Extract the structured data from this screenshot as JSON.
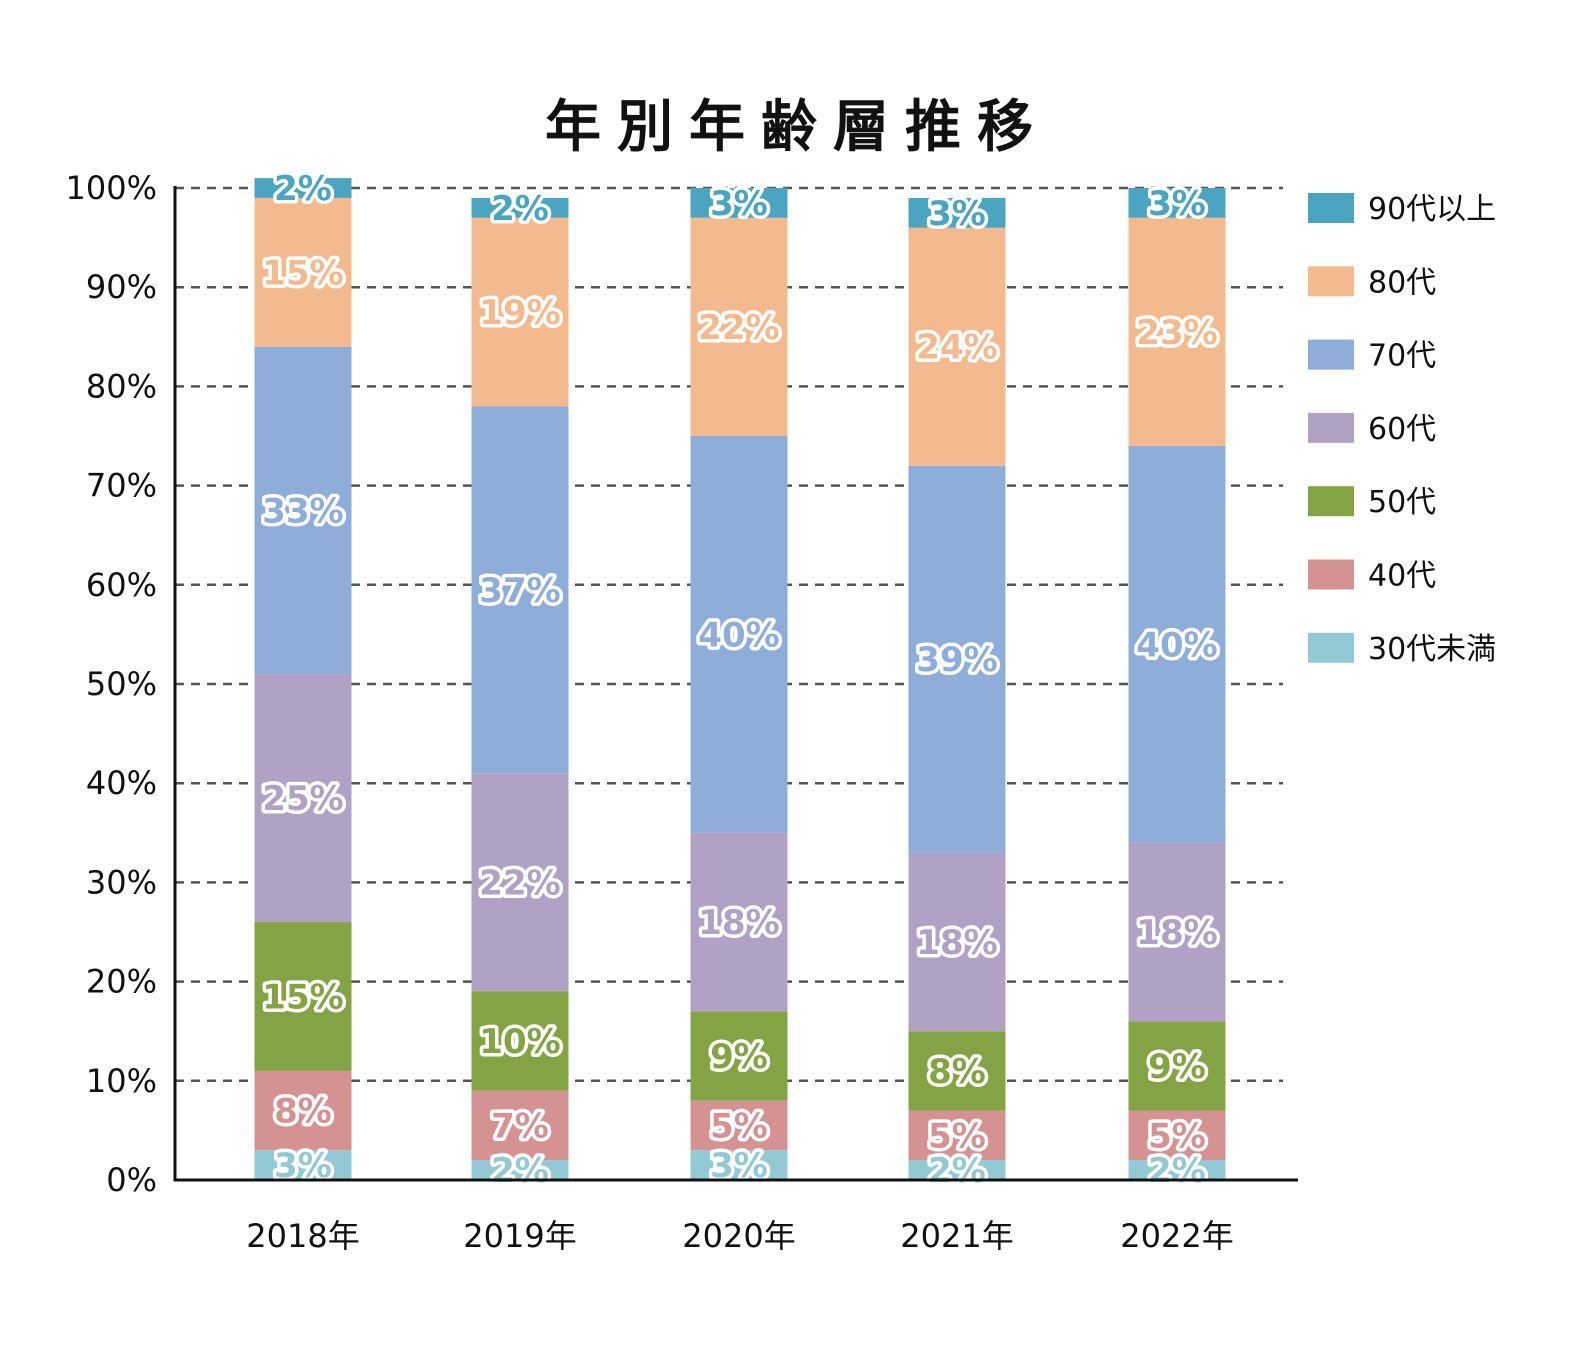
{
  "chart_data": {
    "type": "bar",
    "stacked": true,
    "title": "年別年齢層推移",
    "categories": [
      "2018年",
      "2019年",
      "2020年",
      "2021年",
      "2022年"
    ],
    "ylim": [
      0,
      100
    ],
    "yticks": [
      "0%",
      "10%",
      "20%",
      "30%",
      "40%",
      "50%",
      "60%",
      "70%",
      "80%",
      "90%",
      "100%"
    ],
    "grid": true,
    "legend_position": "right",
    "series": [
      {
        "name": "30代未満",
        "color": "#93c9d5",
        "values": [
          3,
          2,
          3,
          2,
          2
        ],
        "labels": [
          "3%",
          "2%",
          "3%",
          "2%",
          "2%"
        ]
      },
      {
        "name": "40代",
        "color": "#d49392",
        "values": [
          8,
          7,
          5,
          5,
          5
        ],
        "labels": [
          "8%",
          "7%",
          "5%",
          "5%",
          "5%"
        ]
      },
      {
        "name": "50代",
        "color": "#84a345",
        "values": [
          15,
          10,
          9,
          8,
          9
        ],
        "labels": [
          "15%",
          "10%",
          "9%",
          "8%",
          "9%"
        ]
      },
      {
        "name": "60代",
        "color": "#b0a1c5",
        "values": [
          25,
          22,
          18,
          18,
          18
        ],
        "labels": [
          "25%",
          "22%",
          "18%",
          "18%",
          "18%"
        ]
      },
      {
        "name": "70代",
        "color": "#8eadd8",
        "values": [
          33,
          37,
          40,
          39,
          40
        ],
        "labels": [
          "33%",
          "37%",
          "40%",
          "39%",
          "40%"
        ]
      },
      {
        "name": "80代",
        "color": "#f4ba8f",
        "values": [
          15,
          19,
          22,
          24,
          23
        ],
        "labels": [
          "15%",
          "19%",
          "22%",
          "24%",
          "23%"
        ]
      },
      {
        "name": "90代以上",
        "color": "#4ba5c0",
        "values": [
          2,
          2,
          3,
          3,
          3
        ],
        "labels": [
          "2%",
          "2%",
          "3%",
          "3%",
          "3%"
        ]
      }
    ]
  }
}
